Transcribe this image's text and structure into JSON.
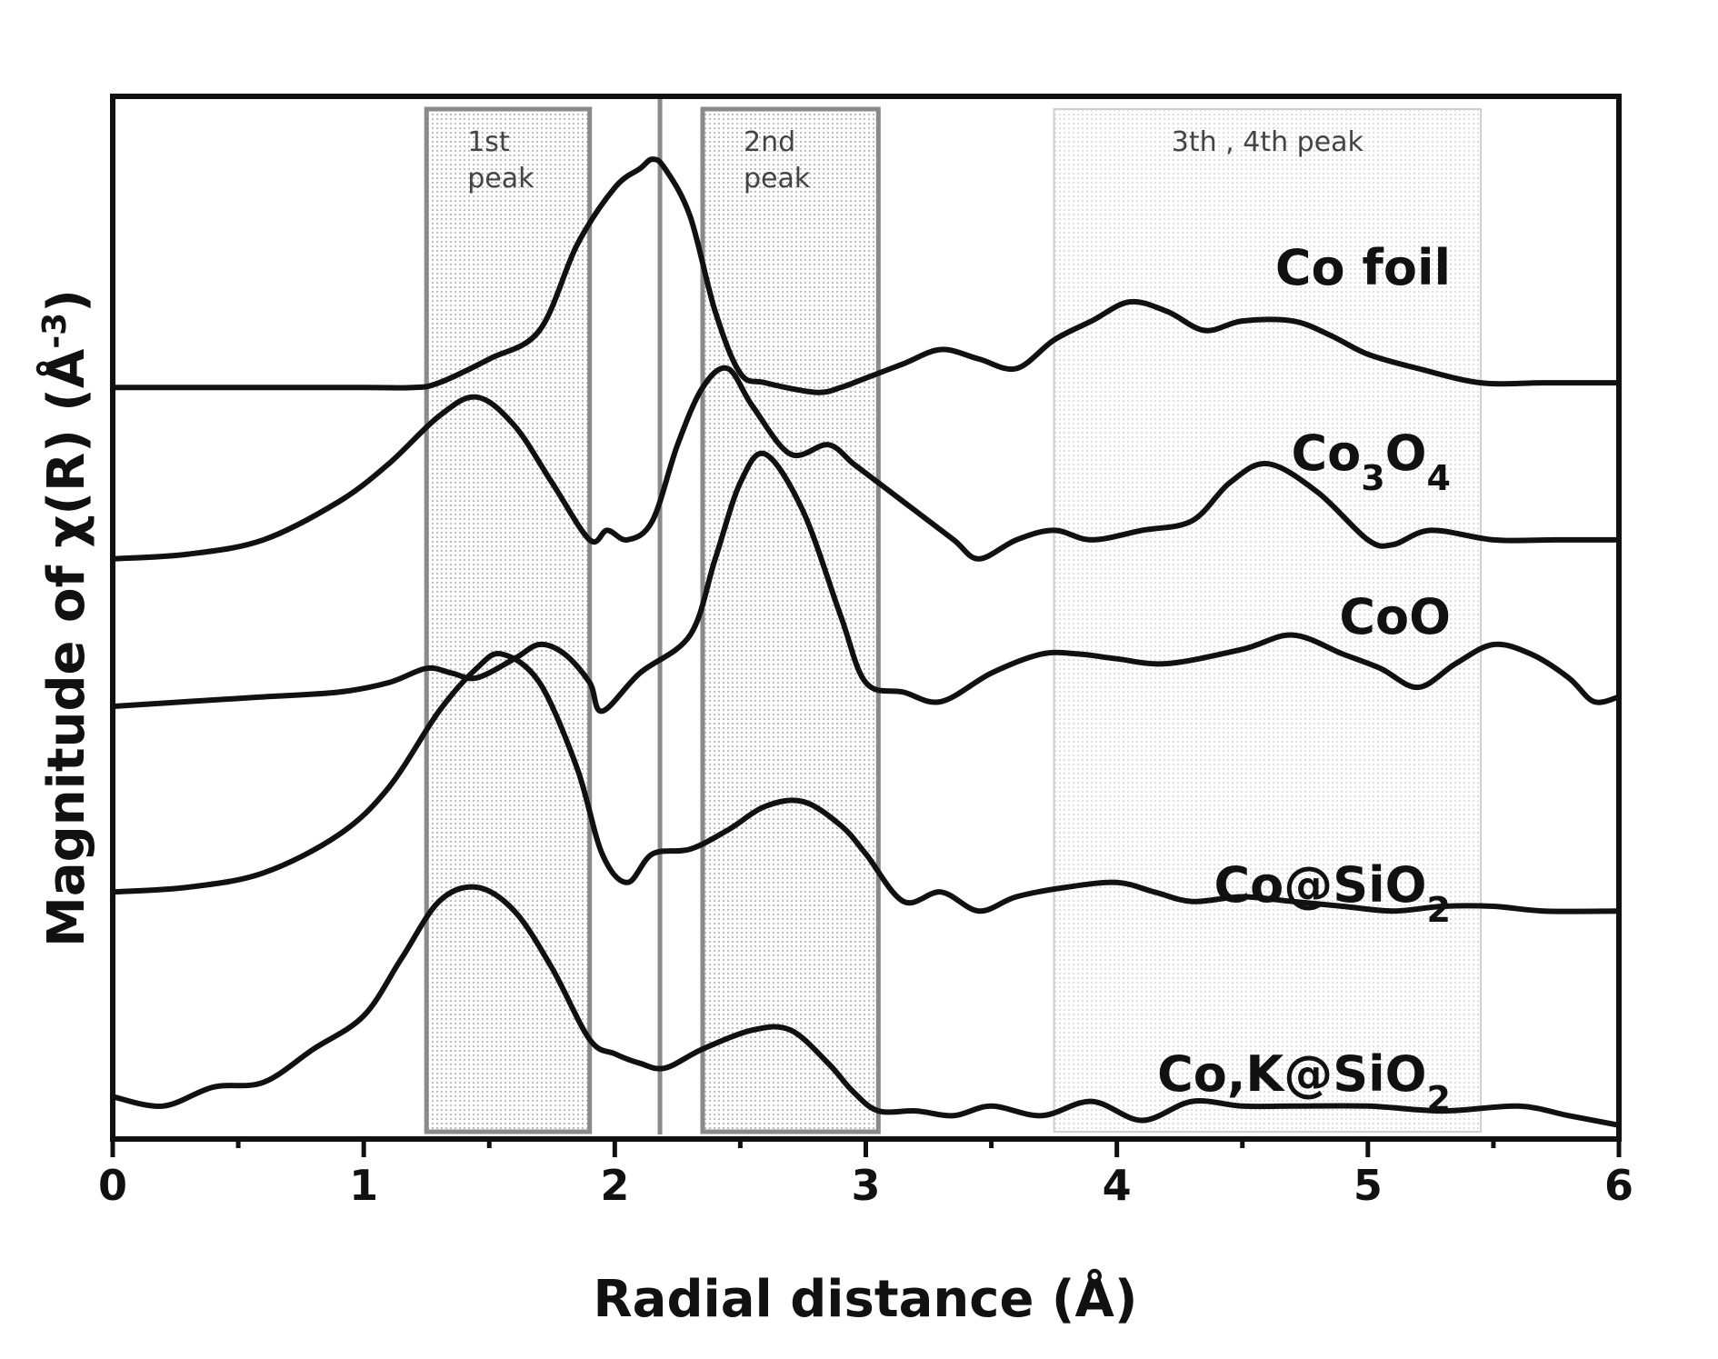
{
  "chart_data": {
    "type": "line",
    "title": "",
    "xlabel": "Radial distance (Å)",
    "ylabel": "Magnitude of χ(R) (Å⁻³)",
    "ylabel_parts": {
      "main": "Magnitude of χ(R) (Å",
      "sup": "-3",
      "end": ")"
    },
    "xlim": [
      0,
      6
    ],
    "xticks": [
      "0",
      "1",
      "2",
      "3",
      "4",
      "5",
      "6"
    ],
    "ylim": [
      0,
      10
    ],
    "y_ticks_labeled": false,
    "grid": false,
    "stacked_offset": true,
    "regions": [
      {
        "name": "first-peak",
        "line1": "1st",
        "line2": "peak",
        "x": [
          1.25,
          1.9
        ],
        "style": "dark-box"
      },
      {
        "name": "second-peak",
        "line1": "2nd",
        "line2": "peak",
        "x": [
          2.35,
          3.05
        ],
        "style": "dark-box"
      },
      {
        "name": "third-fourth-peak",
        "line1": "3th , 4th peak",
        "line2": "",
        "x": [
          3.75,
          5.45
        ],
        "style": "light-box"
      }
    ],
    "vertical_line_x": 2.18,
    "series": [
      {
        "name": "Co foil",
        "label_parts": [
          {
            "t": "Co foil"
          }
        ],
        "x": [
          0,
          0.5,
          1.0,
          1.2,
          1.3,
          1.5,
          1.7,
          1.85,
          2.0,
          2.1,
          2.15,
          2.2,
          2.3,
          2.4,
          2.5,
          2.6,
          2.8,
          2.9,
          3.0,
          3.15,
          3.3,
          3.45,
          3.6,
          3.75,
          3.9,
          4.05,
          4.2,
          4.35,
          4.5,
          4.7,
          4.85,
          5.0,
          5.2,
          5.45,
          5.7,
          6.0
        ],
        "y": [
          7.8,
          7.8,
          7.8,
          7.8,
          7.85,
          8.1,
          8.4,
          9.3,
          9.9,
          10.1,
          10.2,
          10.1,
          9.6,
          8.6,
          7.95,
          7.85,
          7.75,
          7.8,
          7.9,
          8.05,
          8.2,
          8.1,
          8.0,
          8.3,
          8.5,
          8.7,
          8.6,
          8.4,
          8.5,
          8.5,
          8.35,
          8.15,
          8.0,
          7.85,
          7.85,
          7.85
        ]
      },
      {
        "name": "Co3O4",
        "label_parts": [
          {
            "t": "Co"
          },
          {
            "t": "3",
            "sub": true
          },
          {
            "t": "O"
          },
          {
            "t": "4",
            "sub": true
          }
        ],
        "x": [
          0,
          0.3,
          0.6,
          0.9,
          1.1,
          1.3,
          1.45,
          1.6,
          1.75,
          1.9,
          1.97,
          2.05,
          2.15,
          2.25,
          2.35,
          2.45,
          2.55,
          2.7,
          2.85,
          2.95,
          3.05,
          3.2,
          3.35,
          3.45,
          3.6,
          3.75,
          3.9,
          4.1,
          4.3,
          4.45,
          4.6,
          4.8,
          5.0,
          5.1,
          5.25,
          5.5,
          5.75,
          6.0
        ],
        "y": [
          6.0,
          6.05,
          6.2,
          6.6,
          7.0,
          7.5,
          7.7,
          7.4,
          6.8,
          6.2,
          6.3,
          6.2,
          6.4,
          7.2,
          7.8,
          8.0,
          7.6,
          7.1,
          7.2,
          7.0,
          6.8,
          6.5,
          6.2,
          6.0,
          6.2,
          6.3,
          6.2,
          6.3,
          6.4,
          6.8,
          7.0,
          6.7,
          6.2,
          6.15,
          6.3,
          6.2,
          6.2,
          6.2
        ]
      },
      {
        "name": "CoO",
        "label_parts": [
          {
            "t": "CoO"
          }
        ],
        "x": [
          0,
          0.3,
          0.6,
          0.9,
          1.1,
          1.25,
          1.35,
          1.45,
          1.6,
          1.7,
          1.8,
          1.9,
          1.95,
          2.1,
          2.3,
          2.4,
          2.5,
          2.6,
          2.75,
          2.9,
          3.0,
          3.15,
          3.3,
          3.5,
          3.7,
          3.85,
          4.0,
          4.2,
          4.5,
          4.7,
          4.9,
          5.05,
          5.2,
          5.35,
          5.5,
          5.65,
          5.8,
          5.9,
          6.0
        ],
        "y": [
          4.45,
          4.5,
          4.55,
          4.6,
          4.7,
          4.85,
          4.8,
          4.75,
          4.95,
          5.1,
          5.0,
          4.7,
          4.4,
          4.8,
          5.2,
          6.0,
          6.8,
          7.1,
          6.5,
          5.4,
          4.7,
          4.6,
          4.5,
          4.8,
          5.0,
          5.0,
          4.95,
          4.9,
          5.05,
          5.2,
          5.0,
          4.85,
          4.65,
          4.9,
          5.1,
          5.0,
          4.75,
          4.5,
          4.55
        ]
      },
      {
        "name": "Co@SiO2",
        "label_parts": [
          {
            "t": "Co@SiO"
          },
          {
            "t": "2",
            "sub": true
          }
        ],
        "x": [
          0,
          0.3,
          0.6,
          0.9,
          1.1,
          1.3,
          1.45,
          1.55,
          1.7,
          1.85,
          1.95,
          2.05,
          2.15,
          2.3,
          2.45,
          2.6,
          2.75,
          2.9,
          3.0,
          3.15,
          3.3,
          3.45,
          3.6,
          3.8,
          4.0,
          4.15,
          4.3,
          4.5,
          4.7,
          4.9,
          5.1,
          5.3,
          5.5,
          5.7,
          6.0
        ],
        "y": [
          2.5,
          2.55,
          2.7,
          3.1,
          3.6,
          4.4,
          4.85,
          5.0,
          4.7,
          3.8,
          2.9,
          2.6,
          2.9,
          2.95,
          3.15,
          3.4,
          3.45,
          3.2,
          2.9,
          2.4,
          2.5,
          2.3,
          2.45,
          2.55,
          2.6,
          2.5,
          2.4,
          2.45,
          2.4,
          2.35,
          2.3,
          2.35,
          2.35,
          2.3,
          2.3
        ]
      },
      {
        "name": "Co,K@SiO2",
        "label_parts": [
          {
            "t": "Co,K@SiO"
          },
          {
            "t": "2",
            "sub": true
          }
        ],
        "x": [
          0,
          0.2,
          0.4,
          0.6,
          0.8,
          1.0,
          1.15,
          1.3,
          1.45,
          1.6,
          1.75,
          1.9,
          2.0,
          2.1,
          2.2,
          2.35,
          2.55,
          2.7,
          2.85,
          2.95,
          3.05,
          3.2,
          3.35,
          3.5,
          3.7,
          3.9,
          4.1,
          4.3,
          4.5,
          4.7,
          5.0,
          5.3,
          5.6,
          5.8,
          6.0
        ],
        "y": [
          0.35,
          0.25,
          0.45,
          0.5,
          0.85,
          1.2,
          1.8,
          2.4,
          2.55,
          2.3,
          1.7,
          0.95,
          0.8,
          0.7,
          0.65,
          0.85,
          1.05,
          1.05,
          0.7,
          0.4,
          0.2,
          0.2,
          0.15,
          0.25,
          0.15,
          0.3,
          0.1,
          0.3,
          0.25,
          0.25,
          0.25,
          0.2,
          0.25,
          0.15,
          0.05
        ]
      }
    ]
  }
}
